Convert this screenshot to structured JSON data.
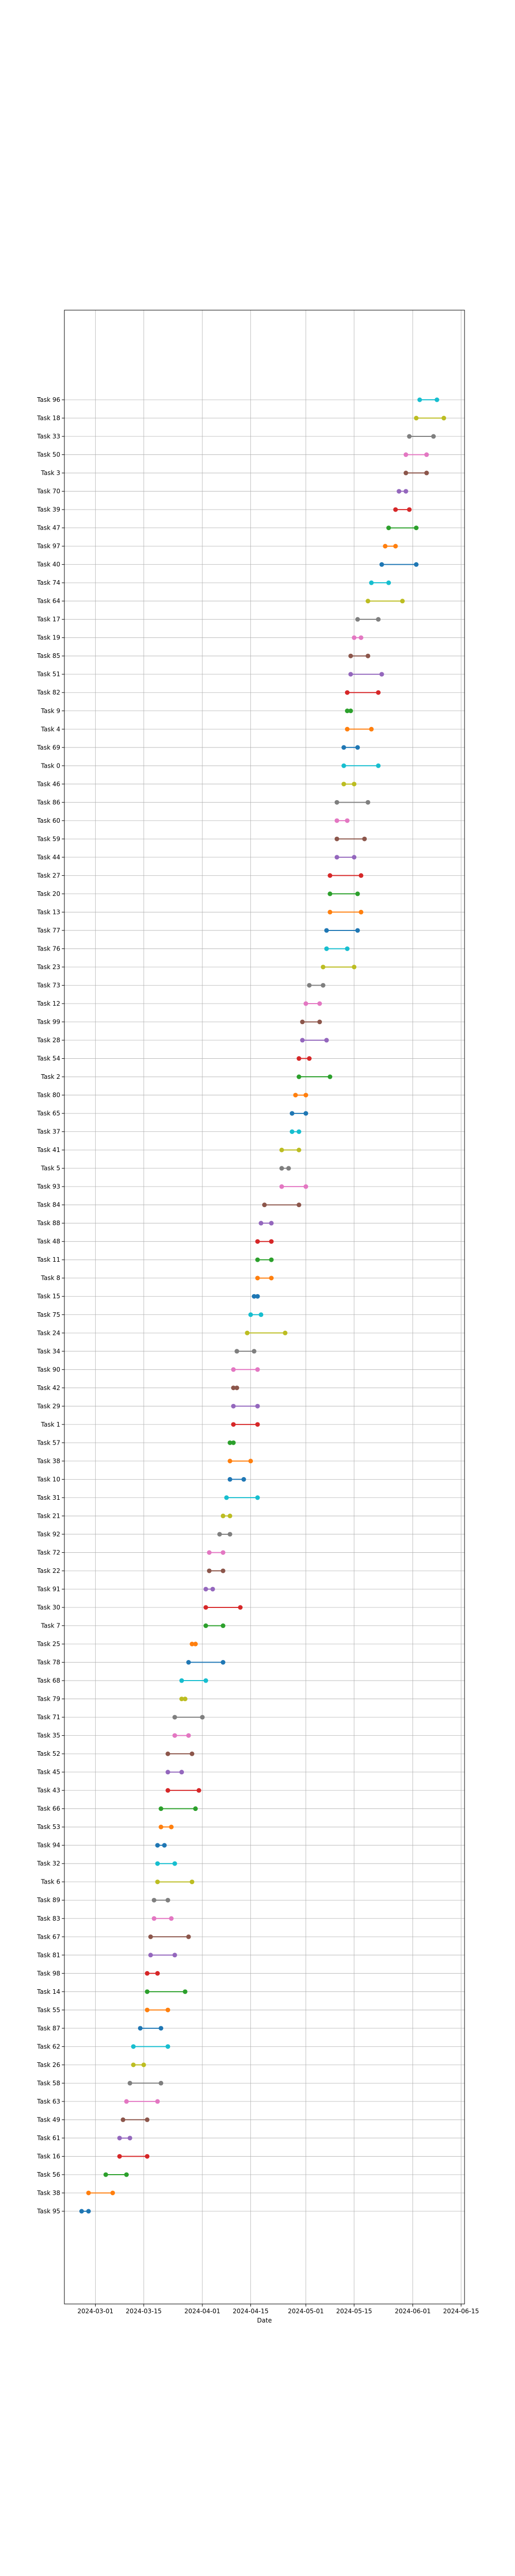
{
  "chart_data": {
    "type": "dumbbell",
    "title": "",
    "xlabel": "Date",
    "ylabel": "",
    "x_axis": {
      "type": "date",
      "range": [
        "2024-02-21",
        "2024-06-16"
      ],
      "ticks": [
        "2024-03-01",
        "2024-03-15",
        "2024-04-01",
        "2024-04-15",
        "2024-05-01",
        "2024-05-15",
        "2024-06-01",
        "2024-06-15"
      ]
    },
    "grid": true,
    "legend": "none",
    "tasks": [
      {
        "task": "Task 95",
        "start": "2024-02-26",
        "end": "2024-02-28",
        "color": "#1f77b4"
      },
      {
        "task": "Task 38",
        "start": "2024-02-28",
        "end": "2024-03-06",
        "color": "#ff7f0e"
      },
      {
        "task": "Task 56",
        "start": "2024-03-04",
        "end": "2024-03-10",
        "color": "#2ca02c"
      },
      {
        "task": "Task 16",
        "start": "2024-03-08",
        "end": "2024-03-16",
        "color": "#d62728"
      },
      {
        "task": "Task 61",
        "start": "2024-03-08",
        "end": "2024-03-11",
        "color": "#9467bd"
      },
      {
        "task": "Task 49",
        "start": "2024-03-09",
        "end": "2024-03-16",
        "color": "#8c564b"
      },
      {
        "task": "Task 63",
        "start": "2024-03-10",
        "end": "2024-03-19",
        "color": "#e377c2"
      },
      {
        "task": "Task 58",
        "start": "2024-03-11",
        "end": "2024-03-20",
        "color": "#7f7f7f"
      },
      {
        "task": "Task 26",
        "start": "2024-03-12",
        "end": "2024-03-15",
        "color": "#bcbd22"
      },
      {
        "task": "Task 62",
        "start": "2024-03-12",
        "end": "2024-03-22",
        "color": "#17becf"
      },
      {
        "task": "Task 87",
        "start": "2024-03-14",
        "end": "2024-03-20",
        "color": "#1f77b4"
      },
      {
        "task": "Task 55",
        "start": "2024-03-16",
        "end": "2024-03-22",
        "color": "#ff7f0e"
      },
      {
        "task": "Task 14",
        "start": "2024-03-16",
        "end": "2024-03-27",
        "color": "#2ca02c"
      },
      {
        "task": "Task 98",
        "start": "2024-03-16",
        "end": "2024-03-19",
        "color": "#d62728"
      },
      {
        "task": "Task 81",
        "start": "2024-03-17",
        "end": "2024-03-24",
        "color": "#9467bd"
      },
      {
        "task": "Task 67",
        "start": "2024-03-17",
        "end": "2024-03-28",
        "color": "#8c564b"
      },
      {
        "task": "Task 83",
        "start": "2024-03-18",
        "end": "2024-03-23",
        "color": "#e377c2"
      },
      {
        "task": "Task 89",
        "start": "2024-03-18",
        "end": "2024-03-22",
        "color": "#7f7f7f"
      },
      {
        "task": "Task 6",
        "start": "2024-03-19",
        "end": "2024-03-29",
        "color": "#bcbd22"
      },
      {
        "task": "Task 32",
        "start": "2024-03-19",
        "end": "2024-03-24",
        "color": "#17becf"
      },
      {
        "task": "Task 94",
        "start": "2024-03-19",
        "end": "2024-03-21",
        "color": "#1f77b4"
      },
      {
        "task": "Task 53",
        "start": "2024-03-20",
        "end": "2024-03-23",
        "color": "#ff7f0e"
      },
      {
        "task": "Task 66",
        "start": "2024-03-20",
        "end": "2024-03-30",
        "color": "#2ca02c"
      },
      {
        "task": "Task 43",
        "start": "2024-03-22",
        "end": "2024-03-31",
        "color": "#d62728"
      },
      {
        "task": "Task 45",
        "start": "2024-03-22",
        "end": "2024-03-26",
        "color": "#9467bd"
      },
      {
        "task": "Task 52",
        "start": "2024-03-22",
        "end": "2024-03-29",
        "color": "#8c564b"
      },
      {
        "task": "Task 35",
        "start": "2024-03-24",
        "end": "2024-03-28",
        "color": "#e377c2"
      },
      {
        "task": "Task 71",
        "start": "2024-03-24",
        "end": "2024-04-01",
        "color": "#7f7f7f"
      },
      {
        "task": "Task 79",
        "start": "2024-03-26",
        "end": "2024-03-27",
        "color": "#bcbd22"
      },
      {
        "task": "Task 68",
        "start": "2024-03-26",
        "end": "2024-04-02",
        "color": "#17becf"
      },
      {
        "task": "Task 78",
        "start": "2024-03-28",
        "end": "2024-04-07",
        "color": "#1f77b4"
      },
      {
        "task": "Task 25",
        "start": "2024-03-29",
        "end": "2024-03-30",
        "color": "#ff7f0e"
      },
      {
        "task": "Task 7",
        "start": "2024-04-02",
        "end": "2024-04-07",
        "color": "#2ca02c"
      },
      {
        "task": "Task 30",
        "start": "2024-04-02",
        "end": "2024-04-12",
        "color": "#d62728"
      },
      {
        "task": "Task 91",
        "start": "2024-04-02",
        "end": "2024-04-04",
        "color": "#9467bd"
      },
      {
        "task": "Task 22",
        "start": "2024-04-03",
        "end": "2024-04-07",
        "color": "#8c564b"
      },
      {
        "task": "Task 72",
        "start": "2024-04-03",
        "end": "2024-04-07",
        "color": "#e377c2"
      },
      {
        "task": "Task 92",
        "start": "2024-04-06",
        "end": "2024-04-09",
        "color": "#7f7f7f"
      },
      {
        "task": "Task 21",
        "start": "2024-04-07",
        "end": "2024-04-09",
        "color": "#bcbd22"
      },
      {
        "task": "Task 31",
        "start": "2024-04-08",
        "end": "2024-04-17",
        "color": "#17becf"
      },
      {
        "task": "Task 10",
        "start": "2024-04-09",
        "end": "2024-04-13",
        "color": "#1f77b4"
      },
      {
        "task": "Task 38",
        "start": "2024-04-09",
        "end": "2024-04-15",
        "color": "#ff7f0e"
      },
      {
        "task": "Task 57",
        "start": "2024-04-09",
        "end": "2024-04-10",
        "color": "#2ca02c"
      },
      {
        "task": "Task 1",
        "start": "2024-04-10",
        "end": "2024-04-17",
        "color": "#d62728"
      },
      {
        "task": "Task 29",
        "start": "2024-04-10",
        "end": "2024-04-17",
        "color": "#9467bd"
      },
      {
        "task": "Task 42",
        "start": "2024-04-10",
        "end": "2024-04-11",
        "color": "#8c564b"
      },
      {
        "task": "Task 90",
        "start": "2024-04-10",
        "end": "2024-04-17",
        "color": "#e377c2"
      },
      {
        "task": "Task 34",
        "start": "2024-04-11",
        "end": "2024-04-16",
        "color": "#7f7f7f"
      },
      {
        "task": "Task 24",
        "start": "2024-04-14",
        "end": "2024-04-25",
        "color": "#bcbd22"
      },
      {
        "task": "Task 75",
        "start": "2024-04-15",
        "end": "2024-04-18",
        "color": "#17becf"
      },
      {
        "task": "Task 15",
        "start": "2024-04-16",
        "end": "2024-04-17",
        "color": "#1f77b4"
      },
      {
        "task": "Task 8",
        "start": "2024-04-17",
        "end": "2024-04-21",
        "color": "#ff7f0e"
      },
      {
        "task": "Task 11",
        "start": "2024-04-17",
        "end": "2024-04-21",
        "color": "#2ca02c"
      },
      {
        "task": "Task 48",
        "start": "2024-04-17",
        "end": "2024-04-21",
        "color": "#d62728"
      },
      {
        "task": "Task 88",
        "start": "2024-04-18",
        "end": "2024-04-21",
        "color": "#9467bd"
      },
      {
        "task": "Task 84",
        "start": "2024-04-19",
        "end": "2024-04-29",
        "color": "#8c564b"
      },
      {
        "task": "Task 93",
        "start": "2024-04-24",
        "end": "2024-05-01",
        "color": "#e377c2"
      },
      {
        "task": "Task 5",
        "start": "2024-04-24",
        "end": "2024-04-26",
        "color": "#7f7f7f"
      },
      {
        "task": "Task 41",
        "start": "2024-04-24",
        "end": "2024-04-29",
        "color": "#bcbd22"
      },
      {
        "task": "Task 37",
        "start": "2024-04-27",
        "end": "2024-04-29",
        "color": "#17becf"
      },
      {
        "task": "Task 65",
        "start": "2024-04-27",
        "end": "2024-05-01",
        "color": "#1f77b4"
      },
      {
        "task": "Task 80",
        "start": "2024-04-28",
        "end": "2024-05-01",
        "color": "#ff7f0e"
      },
      {
        "task": "Task 2",
        "start": "2024-04-29",
        "end": "2024-05-08",
        "color": "#2ca02c"
      },
      {
        "task": "Task 54",
        "start": "2024-04-29",
        "end": "2024-05-02",
        "color": "#d62728"
      },
      {
        "task": "Task 28",
        "start": "2024-04-30",
        "end": "2024-05-07",
        "color": "#9467bd"
      },
      {
        "task": "Task 99",
        "start": "2024-04-30",
        "end": "2024-05-05",
        "color": "#8c564b"
      },
      {
        "task": "Task 12",
        "start": "2024-05-01",
        "end": "2024-05-05",
        "color": "#e377c2"
      },
      {
        "task": "Task 73",
        "start": "2024-05-02",
        "end": "2024-05-06",
        "color": "#7f7f7f"
      },
      {
        "task": "Task 23",
        "start": "2024-05-06",
        "end": "2024-05-15",
        "color": "#bcbd22"
      },
      {
        "task": "Task 76",
        "start": "2024-05-07",
        "end": "2024-05-13",
        "color": "#17becf"
      },
      {
        "task": "Task 77",
        "start": "2024-05-07",
        "end": "2024-05-16",
        "color": "#1f77b4"
      },
      {
        "task": "Task 13",
        "start": "2024-05-08",
        "end": "2024-05-17",
        "color": "#ff7f0e"
      },
      {
        "task": "Task 20",
        "start": "2024-05-08",
        "end": "2024-05-16",
        "color": "#2ca02c"
      },
      {
        "task": "Task 27",
        "start": "2024-05-08",
        "end": "2024-05-17",
        "color": "#d62728"
      },
      {
        "task": "Task 44",
        "start": "2024-05-10",
        "end": "2024-05-15",
        "color": "#9467bd"
      },
      {
        "task": "Task 59",
        "start": "2024-05-10",
        "end": "2024-05-18",
        "color": "#8c564b"
      },
      {
        "task": "Task 60",
        "start": "2024-05-10",
        "end": "2024-05-13",
        "color": "#e377c2"
      },
      {
        "task": "Task 86",
        "start": "2024-05-10",
        "end": "2024-05-19",
        "color": "#7f7f7f"
      },
      {
        "task": "Task 46",
        "start": "2024-05-12",
        "end": "2024-05-15",
        "color": "#bcbd22"
      },
      {
        "task": "Task 0",
        "start": "2024-05-12",
        "end": "2024-05-22",
        "color": "#17becf"
      },
      {
        "task": "Task 69",
        "start": "2024-05-12",
        "end": "2024-05-16",
        "color": "#1f77b4"
      },
      {
        "task": "Task 4",
        "start": "2024-05-13",
        "end": "2024-05-20",
        "color": "#ff7f0e"
      },
      {
        "task": "Task 9",
        "start": "2024-05-13",
        "end": "2024-05-14",
        "color": "#2ca02c"
      },
      {
        "task": "Task 82",
        "start": "2024-05-13",
        "end": "2024-05-22",
        "color": "#d62728"
      },
      {
        "task": "Task 51",
        "start": "2024-05-14",
        "end": "2024-05-23",
        "color": "#9467bd"
      },
      {
        "task": "Task 85",
        "start": "2024-05-14",
        "end": "2024-05-19",
        "color": "#8c564b"
      },
      {
        "task": "Task 19",
        "start": "2024-05-15",
        "end": "2024-05-17",
        "color": "#e377c2"
      },
      {
        "task": "Task 17",
        "start": "2024-05-16",
        "end": "2024-05-22",
        "color": "#7f7f7f"
      },
      {
        "task": "Task 64",
        "start": "2024-05-19",
        "end": "2024-05-29",
        "color": "#bcbd22"
      },
      {
        "task": "Task 74",
        "start": "2024-05-20",
        "end": "2024-05-25",
        "color": "#17becf"
      },
      {
        "task": "Task 40",
        "start": "2024-05-23",
        "end": "2024-06-02",
        "color": "#1f77b4"
      },
      {
        "task": "Task 97",
        "start": "2024-05-24",
        "end": "2024-05-27",
        "color": "#ff7f0e"
      },
      {
        "task": "Task 47",
        "start": "2024-05-25",
        "end": "2024-06-02",
        "color": "#2ca02c"
      },
      {
        "task": "Task 39",
        "start": "2024-05-27",
        "end": "2024-05-31",
        "color": "#d62728"
      },
      {
        "task": "Task 70",
        "start": "2024-05-28",
        "end": "2024-05-30",
        "color": "#9467bd"
      },
      {
        "task": "Task 3",
        "start": "2024-05-30",
        "end": "2024-06-05",
        "color": "#8c564b"
      },
      {
        "task": "Task 50",
        "start": "2024-05-30",
        "end": "2024-06-05",
        "color": "#e377c2"
      },
      {
        "task": "Task 33",
        "start": "2024-05-31",
        "end": "2024-06-07",
        "color": "#7f7f7f"
      },
      {
        "task": "Task 18",
        "start": "2024-06-02",
        "end": "2024-06-10",
        "color": "#bcbd22"
      },
      {
        "task": "Task 96",
        "start": "2024-06-03",
        "end": "2024-06-08",
        "color": "#17becf"
      }
    ]
  }
}
